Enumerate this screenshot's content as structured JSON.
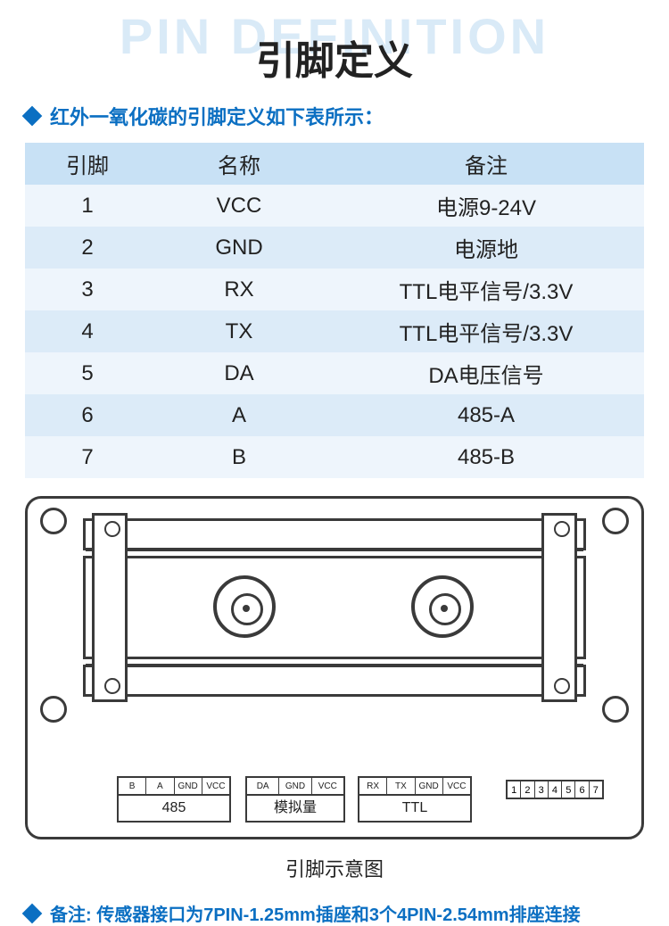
{
  "watermark": "PIN DEFINITION",
  "title": "引脚定义",
  "subtitle": "红外一氧化碳的引脚定义如下表所示：",
  "table": {
    "columns": [
      "引脚",
      "名称",
      "备注"
    ],
    "rows": [
      [
        "1",
        "VCC",
        "电源9-24V"
      ],
      [
        "2",
        "GND",
        "电源地"
      ],
      [
        "3",
        "RX",
        "TTL电平信号/3.3V"
      ],
      [
        "4",
        "TX",
        "TTL电平信号/3.3V"
      ],
      [
        "5",
        "DA",
        "DA电压信号"
      ],
      [
        "6",
        "A",
        "485-A"
      ],
      [
        "7",
        "B",
        "485-B"
      ]
    ]
  },
  "diagram": {
    "connector1": {
      "pins": [
        "B",
        "A",
        "GND",
        "VCC"
      ],
      "label": "485"
    },
    "connector2": {
      "pins": [
        "DA",
        "GND",
        "VCC"
      ],
      "label": "模拟量"
    },
    "connector3": {
      "pins": [
        "RX",
        "TX",
        "GND",
        "VCC"
      ],
      "label": "TTL"
    },
    "connector4": {
      "pins": [
        "1",
        "2",
        "3",
        "4",
        "5",
        "6",
        "7"
      ]
    },
    "caption": "引脚示意图"
  },
  "footnote": "备注: 传感器接口为7PIN-1.25mm插座和3个4PIN-2.54mm排座连接",
  "colors": {
    "accent": "#0b6fc2",
    "watermark": "#d9eaf7",
    "header_bg": "#c8e1f5",
    "row_odd": "#eef5fc",
    "row_even": "#dcebf8",
    "line": "#3a3a3a"
  }
}
